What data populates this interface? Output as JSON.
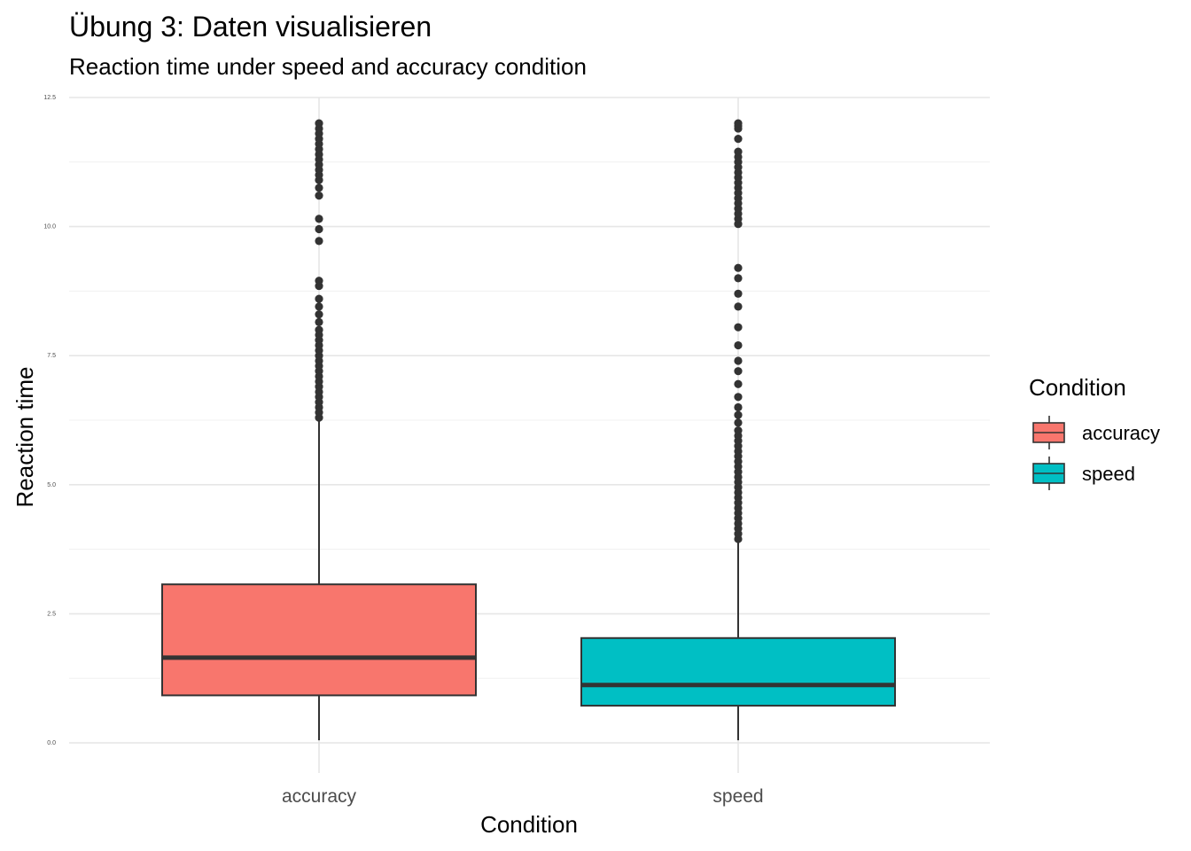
{
  "chart_data": {
    "type": "boxplot",
    "title": "Übung 3: Daten visualisieren",
    "subtitle": "Reaction time under speed and accuracy condition",
    "xlabel": "Condition",
    "ylabel": "Reaction time",
    "ylim": [
      0,
      12.5
    ],
    "yticks": [
      0,
      2.5,
      5,
      7.5,
      10,
      12.5
    ],
    "ytick_labels": [
      "0.0",
      "2.5",
      "5.0",
      "7.5",
      "10.0",
      "12.5"
    ],
    "grid": true,
    "legend": {
      "title": "Condition",
      "position": "right",
      "entries": [
        "accuracy",
        "speed"
      ]
    },
    "categories": [
      "accuracy",
      "speed"
    ],
    "series": [
      {
        "name": "accuracy",
        "color": "#F8766D",
        "whisker_low": 0.05,
        "q1": 0.92,
        "median": 1.65,
        "q3": 3.07,
        "whisker_high": 6.28,
        "outliers": [
          6.3,
          6.4,
          6.5,
          6.6,
          6.7,
          6.8,
          6.9,
          7.0,
          7.1,
          7.2,
          7.3,
          7.4,
          7.5,
          7.6,
          7.7,
          7.8,
          7.9,
          8.0,
          8.15,
          8.3,
          8.45,
          8.6,
          8.85,
          8.95,
          9.72,
          9.95,
          10.15,
          10.6,
          10.75,
          10.9,
          11.0,
          11.1,
          11.2,
          11.3,
          11.4,
          11.5,
          11.6,
          11.7,
          11.8,
          11.9,
          12.0
        ]
      },
      {
        "name": "speed",
        "color": "#00BFC4",
        "whisker_low": 0.05,
        "q1": 0.72,
        "median": 1.12,
        "q3": 2.03,
        "whisker_high": 3.95,
        "outliers": [
          3.95,
          4.05,
          4.15,
          4.25,
          4.35,
          4.45,
          4.55,
          4.65,
          4.75,
          4.85,
          4.95,
          5.05,
          5.15,
          5.25,
          5.35,
          5.45,
          5.55,
          5.65,
          5.75,
          5.85,
          5.95,
          6.05,
          6.2,
          6.35,
          6.5,
          6.7,
          6.95,
          7.2,
          7.4,
          7.7,
          8.05,
          8.45,
          8.7,
          9.0,
          9.2,
          10.05,
          10.15,
          10.25,
          10.35,
          10.45,
          10.55,
          10.65,
          10.75,
          10.85,
          10.95,
          11.05,
          11.15,
          11.25,
          11.35,
          11.45,
          11.7,
          11.9,
          11.95,
          12.0
        ]
      }
    ]
  }
}
